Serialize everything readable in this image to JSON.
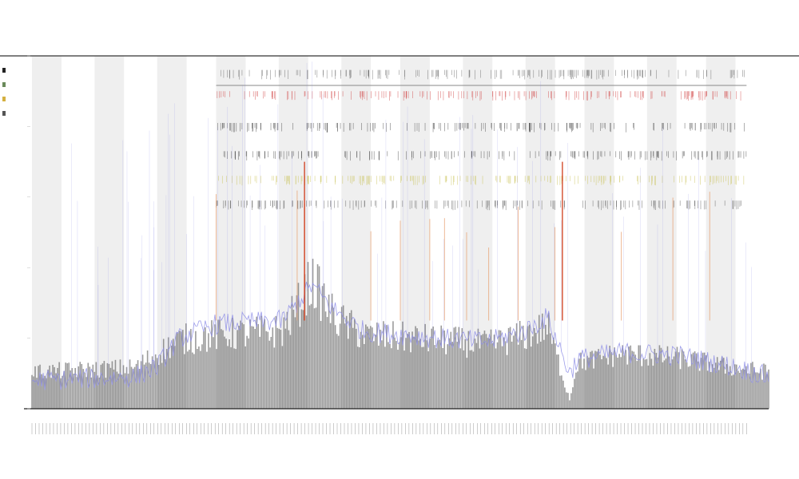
{
  "chart_data": {
    "type": "line",
    "title": "",
    "subtitle_lines": [
      "",
      ""
    ],
    "xlabel": "",
    "ylabel": "",
    "legend_position": "top-left",
    "grid": false,
    "background_band_color": "#efefef",
    "n_points": 460,
    "ylim": [
      0,
      100
    ],
    "series": [
      {
        "color": "#4b4b4b",
        "style": "dense-band",
        "level_profile": [
          [
            0,
            8
          ],
          [
            0.14,
            9
          ],
          [
            0.17,
            12
          ],
          [
            0.2,
            15
          ],
          [
            0.25,
            16
          ],
          [
            0.34,
            17
          ],
          [
            0.36,
            22
          ],
          [
            0.38,
            28
          ],
          [
            0.41,
            20
          ],
          [
            0.45,
            16
          ],
          [
            0.55,
            15
          ],
          [
            0.62,
            14
          ],
          [
            0.67,
            16
          ],
          [
            0.7,
            18
          ],
          [
            0.73,
            2
          ],
          [
            0.74,
            10
          ],
          [
            0.8,
            12
          ],
          [
            0.88,
            11
          ],
          [
            0.95,
            9
          ],
          [
            1,
            8
          ]
        ]
      },
      {
        "color": "#8c8ce6",
        "style": "line",
        "level_profile": [
          [
            0,
            8
          ],
          [
            0.14,
            9
          ],
          [
            0.17,
            12
          ],
          [
            0.2,
            20
          ],
          [
            0.25,
            24
          ],
          [
            0.34,
            25
          ],
          [
            0.36,
            30
          ],
          [
            0.38,
            35
          ],
          [
            0.41,
            28
          ],
          [
            0.45,
            22
          ],
          [
            0.55,
            20
          ],
          [
            0.62,
            19
          ],
          [
            0.67,
            22
          ],
          [
            0.7,
            26
          ],
          [
            0.73,
            10
          ],
          [
            0.74,
            14
          ],
          [
            0.8,
            16
          ],
          [
            0.88,
            15
          ],
          [
            0.95,
            12
          ],
          [
            1,
            9
          ]
        ]
      },
      {
        "color": "#e8a070",
        "style": "spikes",
        "spike_positions": [
          0.25,
          0.36,
          0.37,
          0.46,
          0.5,
          0.54,
          0.56,
          0.59,
          0.62,
          0.66,
          0.71,
          0.8,
          0.87,
          0.92
        ]
      },
      {
        "color": "#d03a1a",
        "style": "spikes",
        "spike_positions": [
          0.37,
          0.72
        ]
      }
    ],
    "shaded_bands": [
      [
        0.0,
        0.04
      ],
      [
        0.085,
        0.125
      ],
      [
        0.17,
        0.21
      ],
      [
        0.25,
        0.29
      ],
      [
        0.335,
        0.375
      ],
      [
        0.42,
        0.46
      ],
      [
        0.5,
        0.54
      ],
      [
        0.585,
        0.625
      ],
      [
        0.67,
        0.71
      ],
      [
        0.75,
        0.79
      ],
      [
        0.835,
        0.875
      ],
      [
        0.915,
        0.955
      ]
    ],
    "tick_rows": [
      {
        "y_frac": 0.04,
        "color": "#666666"
      },
      {
        "y_frac": 0.1,
        "color": "#d04040"
      },
      {
        "y_frac": 0.19,
        "color": "#444444"
      },
      {
        "y_frac": 0.27,
        "color": "#444444"
      },
      {
        "y_frac": 0.34,
        "color": "#c8c050"
      },
      {
        "y_frac": 0.41,
        "color": "#555555"
      }
    ],
    "legend": [
      {
        "label": "",
        "color": "#222222"
      },
      {
        "label": "",
        "color": "#6a8a5a"
      },
      {
        "label": "",
        "color": "#d4b040"
      },
      {
        "label": "",
        "color": "#555555"
      }
    ]
  }
}
